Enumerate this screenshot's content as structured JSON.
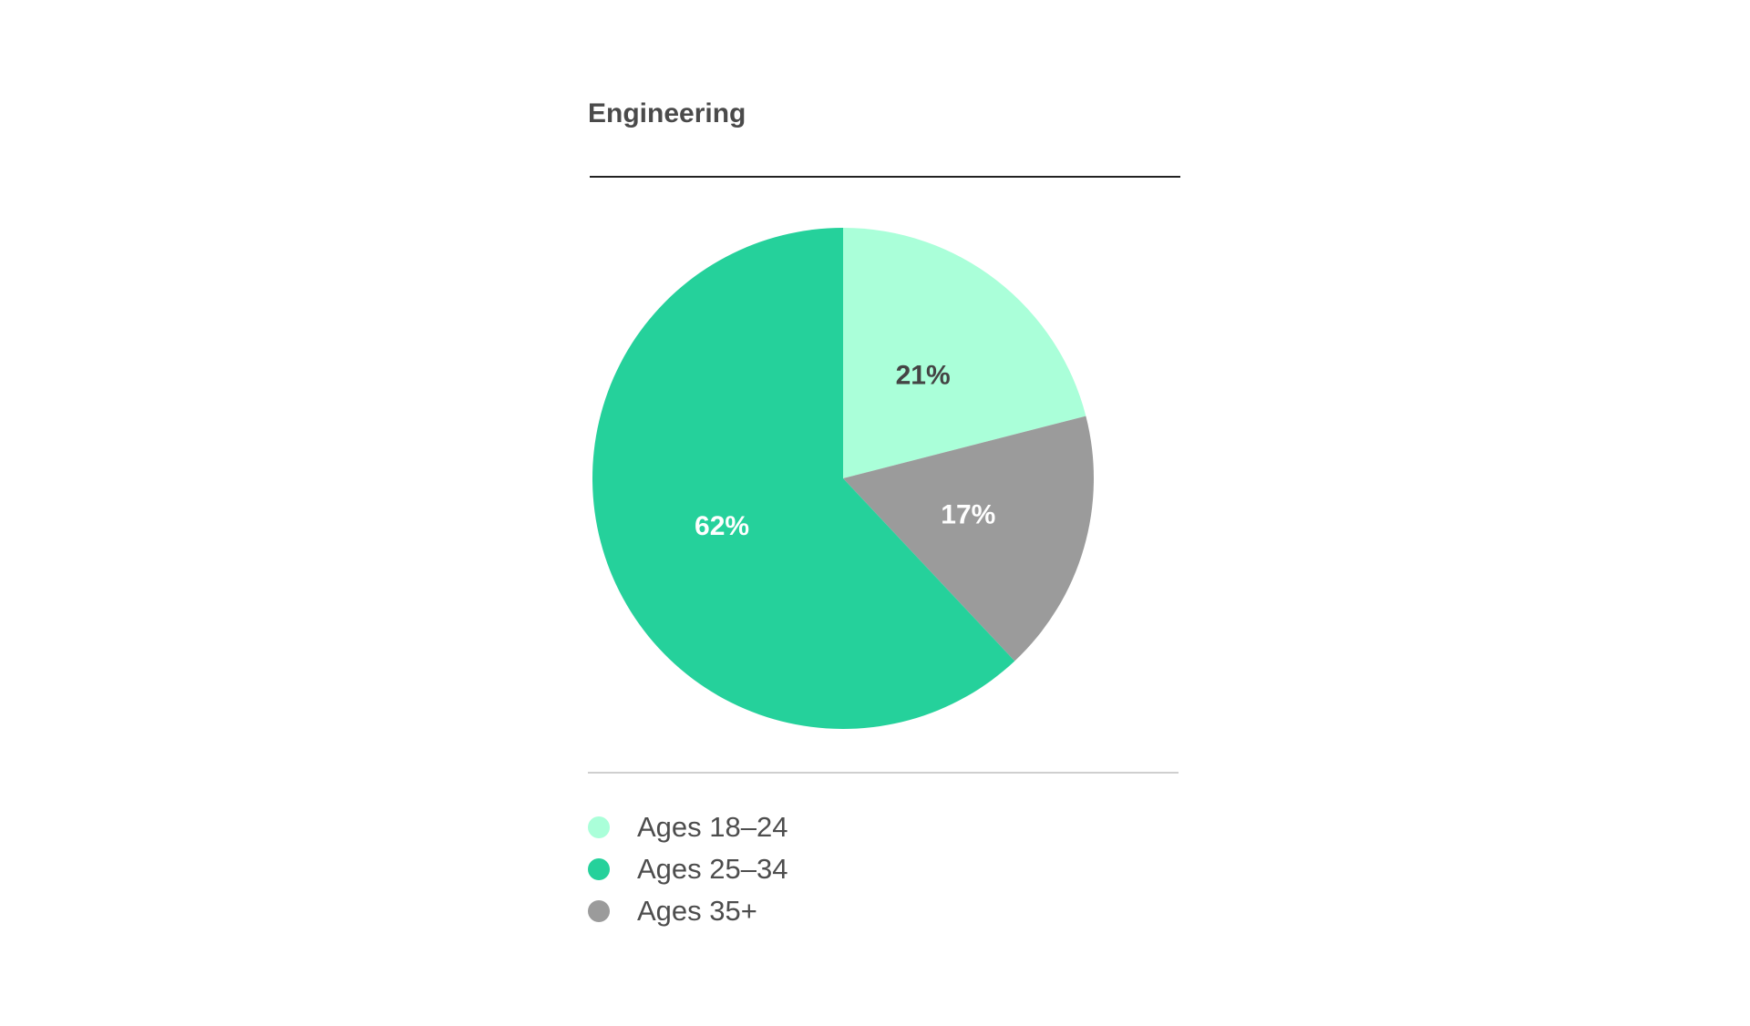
{
  "chart_data": {
    "type": "pie",
    "title": "Engineering",
    "slices": [
      {
        "label": "Ages 18–24",
        "value": 21,
        "display": "21%",
        "color": "#aaffd9",
        "text_color": "#444444"
      },
      {
        "label": "Ages 35+",
        "value": 17,
        "display": "17%",
        "color": "#9b9b9b",
        "text_color": "#ffffff"
      },
      {
        "label": "Ages 25–34",
        "value": 62,
        "display": "62%",
        "color": "#25d19b",
        "text_color": "#ffffff"
      }
    ],
    "legend": {
      "placement": "bottom-left",
      "entries": [
        {
          "label": "Ages 18–24",
          "color": "#aaffd9"
        },
        {
          "label": "Ages 25–34",
          "color": "#25d19b"
        },
        {
          "label": "Ages 35+",
          "color": "#9b9b9b"
        }
      ]
    }
  }
}
